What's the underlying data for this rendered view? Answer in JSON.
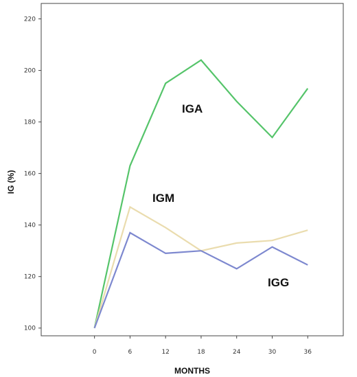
{
  "chart_data": {
    "type": "line",
    "xlabel": "MONTHS",
    "ylabel": "IG (%)",
    "title": "",
    "x": [
      0,
      6,
      12,
      18,
      24,
      30,
      36
    ],
    "xlim": [
      -9,
      42
    ],
    "ylim": [
      97,
      226
    ],
    "x_ticks": [
      "0",
      "6",
      "12",
      "18",
      "24",
      "30",
      "36"
    ],
    "y_ticks": [
      "100",
      "120",
      "140",
      "160",
      "180",
      "200",
      "220"
    ],
    "grid": false,
    "legend": "none",
    "series": [
      {
        "name": "IGA",
        "color": "#55c46a",
        "values": [
          100,
          163,
          195,
          204,
          188,
          174,
          193
        ]
      },
      {
        "name": "IGM",
        "color": "#eadcae",
        "values": [
          100,
          147,
          139,
          130,
          133,
          134,
          138
        ]
      },
      {
        "name": "IGG",
        "color": "#7d88cf",
        "values": [
          100,
          137,
          129,
          130,
          123,
          131.5,
          124.5
        ]
      }
    ]
  }
}
